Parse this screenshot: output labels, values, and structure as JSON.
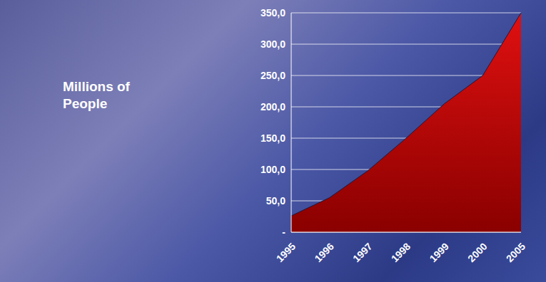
{
  "chart_data": {
    "type": "area",
    "ylabel": "Millions of People",
    "categories": [
      "1995",
      "1996",
      "1997",
      "1998",
      "1999",
      "2000",
      "2005"
    ],
    "values": [
      26,
      55,
      98,
      150,
      205,
      250,
      350
    ],
    "color": "#e01010",
    "ylim": [
      0,
      350
    ],
    "yticks": [
      {
        "value": 0,
        "label": "-"
      },
      {
        "value": 50,
        "label": "50,0"
      },
      {
        "value": 100,
        "label": "100,0"
      },
      {
        "value": 150,
        "label": "150,0"
      },
      {
        "value": 200,
        "label": "200,0"
      },
      {
        "value": 250,
        "label": "250,0"
      },
      {
        "value": 300,
        "label": "300,0"
      },
      {
        "value": 350,
        "label": "350,0"
      }
    ],
    "grid": true
  }
}
